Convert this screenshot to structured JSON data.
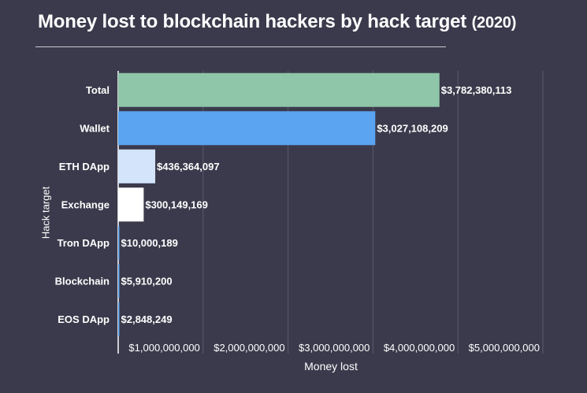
{
  "header": {
    "title": "Money lost to blockchain hackers by hack target",
    "title_year": "(2020)"
  },
  "chart_data": {
    "type": "bar",
    "orientation": "horizontal",
    "title": "Money lost to blockchain hackers by hack target (2020)",
    "xlabel": "Money lost",
    "ylabel": "Hack target",
    "xlim": [
      0,
      5000000000
    ],
    "x_ticks": [
      1000000000,
      2000000000,
      3000000000,
      4000000000,
      5000000000
    ],
    "x_tick_labels": [
      "$1,000,000,000",
      "$2,000,000,000",
      "$3,000,000,000",
      "$4,000,000,000",
      "$5,000,000,000"
    ],
    "grid": true,
    "categories": [
      "Total",
      "Wallet",
      "ETH DApp",
      "Exchange",
      "Tron DApp",
      "Blockchain",
      "EOS DApp"
    ],
    "values": [
      3782380113,
      3027108209,
      436364097,
      300149169,
      10000189,
      5910200,
      2848249
    ],
    "value_labels": [
      "$3,782,380,113",
      "$3,027,108,209",
      "$436,364,097",
      "$300,149,169",
      "$10,000,189",
      "$5,910,200",
      "$2,848,249"
    ],
    "bar_colors": [
      "#8fc5a8",
      "#5aa4f2",
      "#d3e4fb",
      "#ffffff",
      "#5aa4f2",
      "#5aa4f2",
      "#5aa4f2"
    ]
  }
}
